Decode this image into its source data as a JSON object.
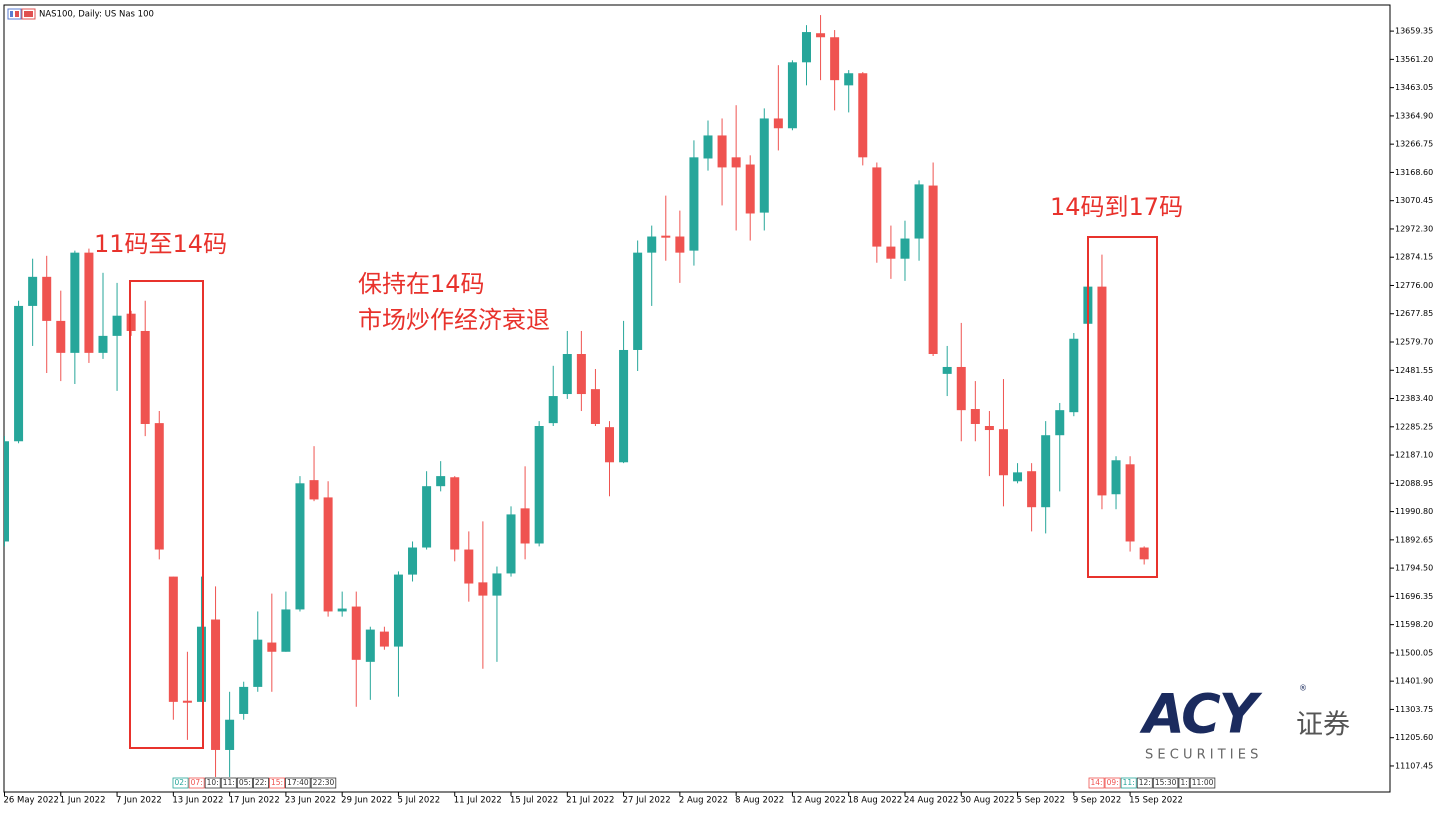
{
  "chart_data": {
    "type": "candlestick",
    "title": "NAS100, Daily:  US Nas 100",
    "categories": [
      "26 May 2022",
      null,
      null,
      null,
      "1 Jun 2022",
      null,
      null,
      null,
      "7 Jun 2022",
      null,
      null,
      null,
      "13 Jun 2022",
      null,
      null,
      null,
      "17 Jun 2022",
      null,
      null,
      null,
      "23 Jun 2022",
      null,
      null,
      null,
      "29 Jun 2022",
      null,
      null,
      null,
      "5 Jul 2022",
      null,
      null,
      null,
      "11 Jul 2022",
      null,
      null,
      null,
      "15 Jul 2022",
      null,
      null,
      null,
      "21 Jul 2022",
      null,
      null,
      null,
      "27 Jul 2022",
      null,
      null,
      null,
      "2 Aug 2022",
      null,
      null,
      null,
      "8 Aug 2022",
      null,
      null,
      null,
      "12 Aug 2022",
      null,
      null,
      null,
      "18 Aug 2022",
      null,
      null,
      null,
      "24 Aug 2022",
      null,
      null,
      null,
      "30 Aug 2022",
      null,
      null,
      null,
      "5 Sep 2022",
      null,
      null,
      null,
      "9 Sep 2022",
      null,
      null,
      null,
      "15 Sep 2022",
      null
    ],
    "open": [
      11887,
      12235,
      12705,
      12806,
      12653,
      12542,
      12890,
      12542,
      12601,
      12678,
      12618,
      12298,
      11765,
      11334,
      11330,
      11616,
      11163,
      11288,
      11382,
      11536,
      11504,
      11651,
      12100,
      12040,
      11644,
      11661,
      11469,
      11574,
      11522,
      11772,
      11866,
      12079,
      12110,
      11859,
      11745,
      11699,
      11776,
      12002,
      11880,
      12298,
      12399,
      12538,
      12416,
      12284,
      12162,
      12552,
      12890,
      12949,
      12946,
      12897,
      13217,
      13297,
      13221,
      13196,
      13029,
      13356,
      13322,
      13551,
      13652,
      13638,
      13471,
      13513,
      13186,
      12911,
      12869,
      12939,
      13123,
      12469,
      12493,
      12347,
      12288,
      12277,
      12096,
      12131,
      12006,
      12256,
      12336,
      12643,
      12772,
      12051,
      12155,
      11866
    ],
    "high": [
      12253,
      12723,
      12869,
      12879,
      12758,
      12897,
      12904,
      12820,
      12785,
      12688,
      12723,
      12340,
      11765,
      11504,
      11765,
      11731,
      11365,
      11400,
      11644,
      11706,
      11713,
      12114,
      12218,
      12096,
      11713,
      11713,
      11591,
      11591,
      11783,
      11887,
      12131,
      12166,
      12114,
      11922,
      11957,
      11800,
      12009,
      12148,
      12305,
      12497,
      12618,
      12618,
      12486,
      12305,
      12653,
      12932,
      12984,
      13088,
      13036,
      13280,
      13349,
      13356,
      13402,
      13228,
      13391,
      13541,
      13558,
      13680,
      13715,
      13663,
      13524,
      13517,
      13203,
      12984,
      13001,
      13141,
      13203,
      12566,
      12646,
      12444,
      12340,
      12451,
      12159,
      12159,
      12305,
      12368,
      12611,
      12785,
      12883,
      12183,
      12183,
      11870
    ],
    "low": [
      11870,
      12228,
      12566,
      12472,
      12444,
      12434,
      12507,
      12521,
      12410,
      12601,
      12253,
      11825,
      11268,
      11198,
      11330,
      11069,
      11069,
      11268,
      11365,
      11365,
      11504,
      11644,
      12027,
      11626,
      11626,
      11313,
      11337,
      11511,
      11348,
      11748,
      11859,
      12061,
      11818,
      11678,
      11445,
      11469,
      11765,
      11825,
      11870,
      12288,
      12382,
      12340,
      12288,
      12044,
      12159,
      12479,
      12705,
      12862,
      12785,
      12845,
      13175,
      13054,
      12967,
      12932,
      12967,
      13245,
      13315,
      13471,
      13489,
      13384,
      13377,
      13193,
      12855,
      12799,
      12792,
      12862,
      12531,
      12392,
      12235,
      12235,
      12114,
      12009,
      12089,
      11922,
      11915,
      12061,
      12322,
      12636,
      11999,
      11999,
      11852,
      11807
    ],
    "close": [
      12235,
      12705,
      12806,
      12653,
      12542,
      12890,
      12542,
      12601,
      12671,
      12618,
      12295,
      11859,
      11330,
      11327,
      11591,
      11163,
      11268,
      11382,
      11546,
      11504,
      11651,
      12089,
      12033,
      11644,
      11654,
      11476,
      11581,
      11522,
      11772,
      11866,
      12079,
      12114,
      11859,
      11741,
      11699,
      11776,
      11981,
      11880,
      12288,
      12392,
      12538,
      12399,
      12295,
      12162,
      12552,
      12890,
      12946,
      12942,
      12890,
      13221,
      13297,
      13186,
      13186,
      13026,
      13356,
      13322,
      13551,
      13656,
      13638,
      13489,
      13513,
      13221,
      12911,
      12869,
      12939,
      13127,
      12538,
      12493,
      12343,
      12295,
      12274,
      12117,
      12127,
      12006,
      12256,
      12343,
      12591,
      12772,
      12047,
      12169,
      11887,
      11825
    ],
    "up_color": "#26a69a",
    "down_color": "#ef5350",
    "ylim": [
      11017,
      13750
    ],
    "yticks": [
      13659.35,
      {
        "value": 13561.2,
        "label": "13561.20"
      },
      13463.05,
      {
        "value": 13364.9,
        "label": "13364.90"
      },
      13266.75,
      {
        "value": 13168.6,
        "label": "13168.60"
      },
      13070.45,
      {
        "value": 12972.3,
        "label": "12972.30"
      },
      12874.15,
      {
        "value": 12776,
        "label": "12776.00"
      },
      12677.85,
      {
        "value": 12579.7,
        "label": "12579.70"
      },
      12481.55,
      {
        "value": 12383.4,
        "label": "12383.40"
      },
      12285.25,
      {
        "value": 12187.1,
        "label": "12187.10"
      },
      12088.95,
      {
        "value": 11990.8,
        "label": "11990.80"
      },
      11892.65,
      {
        "value": 11794.5,
        "label": "11794.50"
      },
      11696.35,
      {
        "value": 11598.2,
        "label": "11598.20"
      },
      11500.05,
      {
        "value": 11401.9,
        "label": "11401.90"
      },
      11303.75,
      {
        "value": 11205.6,
        "label": "11205.60"
      },
      11107.45
    ],
    "grid": false,
    "annotations": [
      "11码至14码",
      "保持在14码",
      "市场炒作经济衰退",
      "14码到17码"
    ],
    "session_marks": [
      [
        {
          "text": "02:",
          "color": "#26a69a"
        },
        {
          "text": "07:",
          "color": "#ef5350"
        },
        {
          "text": "10:",
          "color": "#333333"
        },
        {
          "text": "11:",
          "color": "#333333"
        },
        {
          "text": "05:",
          "color": "#333333"
        },
        {
          "text": "22:",
          "color": "#333333"
        },
        {
          "text": "15:",
          "color": "#ef5350"
        },
        {
          "text": "17:40",
          "color": "#333333"
        },
        {
          "text": "22:30",
          "color": "#333333"
        }
      ],
      [
        {
          "text": "14:",
          "color": "#ef5350"
        },
        {
          "text": "09:",
          "color": "#ef5350"
        },
        {
          "text": "11:",
          "color": "#26a69a"
        },
        {
          "text": "12:",
          "color": "#333333"
        },
        {
          "text": "15:30",
          "color": "#333333"
        },
        {
          "text": "1:",
          "color": "#333333"
        },
        {
          "text": "11:00",
          "color": "#333333"
        }
      ]
    ]
  },
  "logo": {
    "brand": "ACY",
    "mark": "®",
    "cn": "证券",
    "sub": "S E C U R I T I E S"
  }
}
